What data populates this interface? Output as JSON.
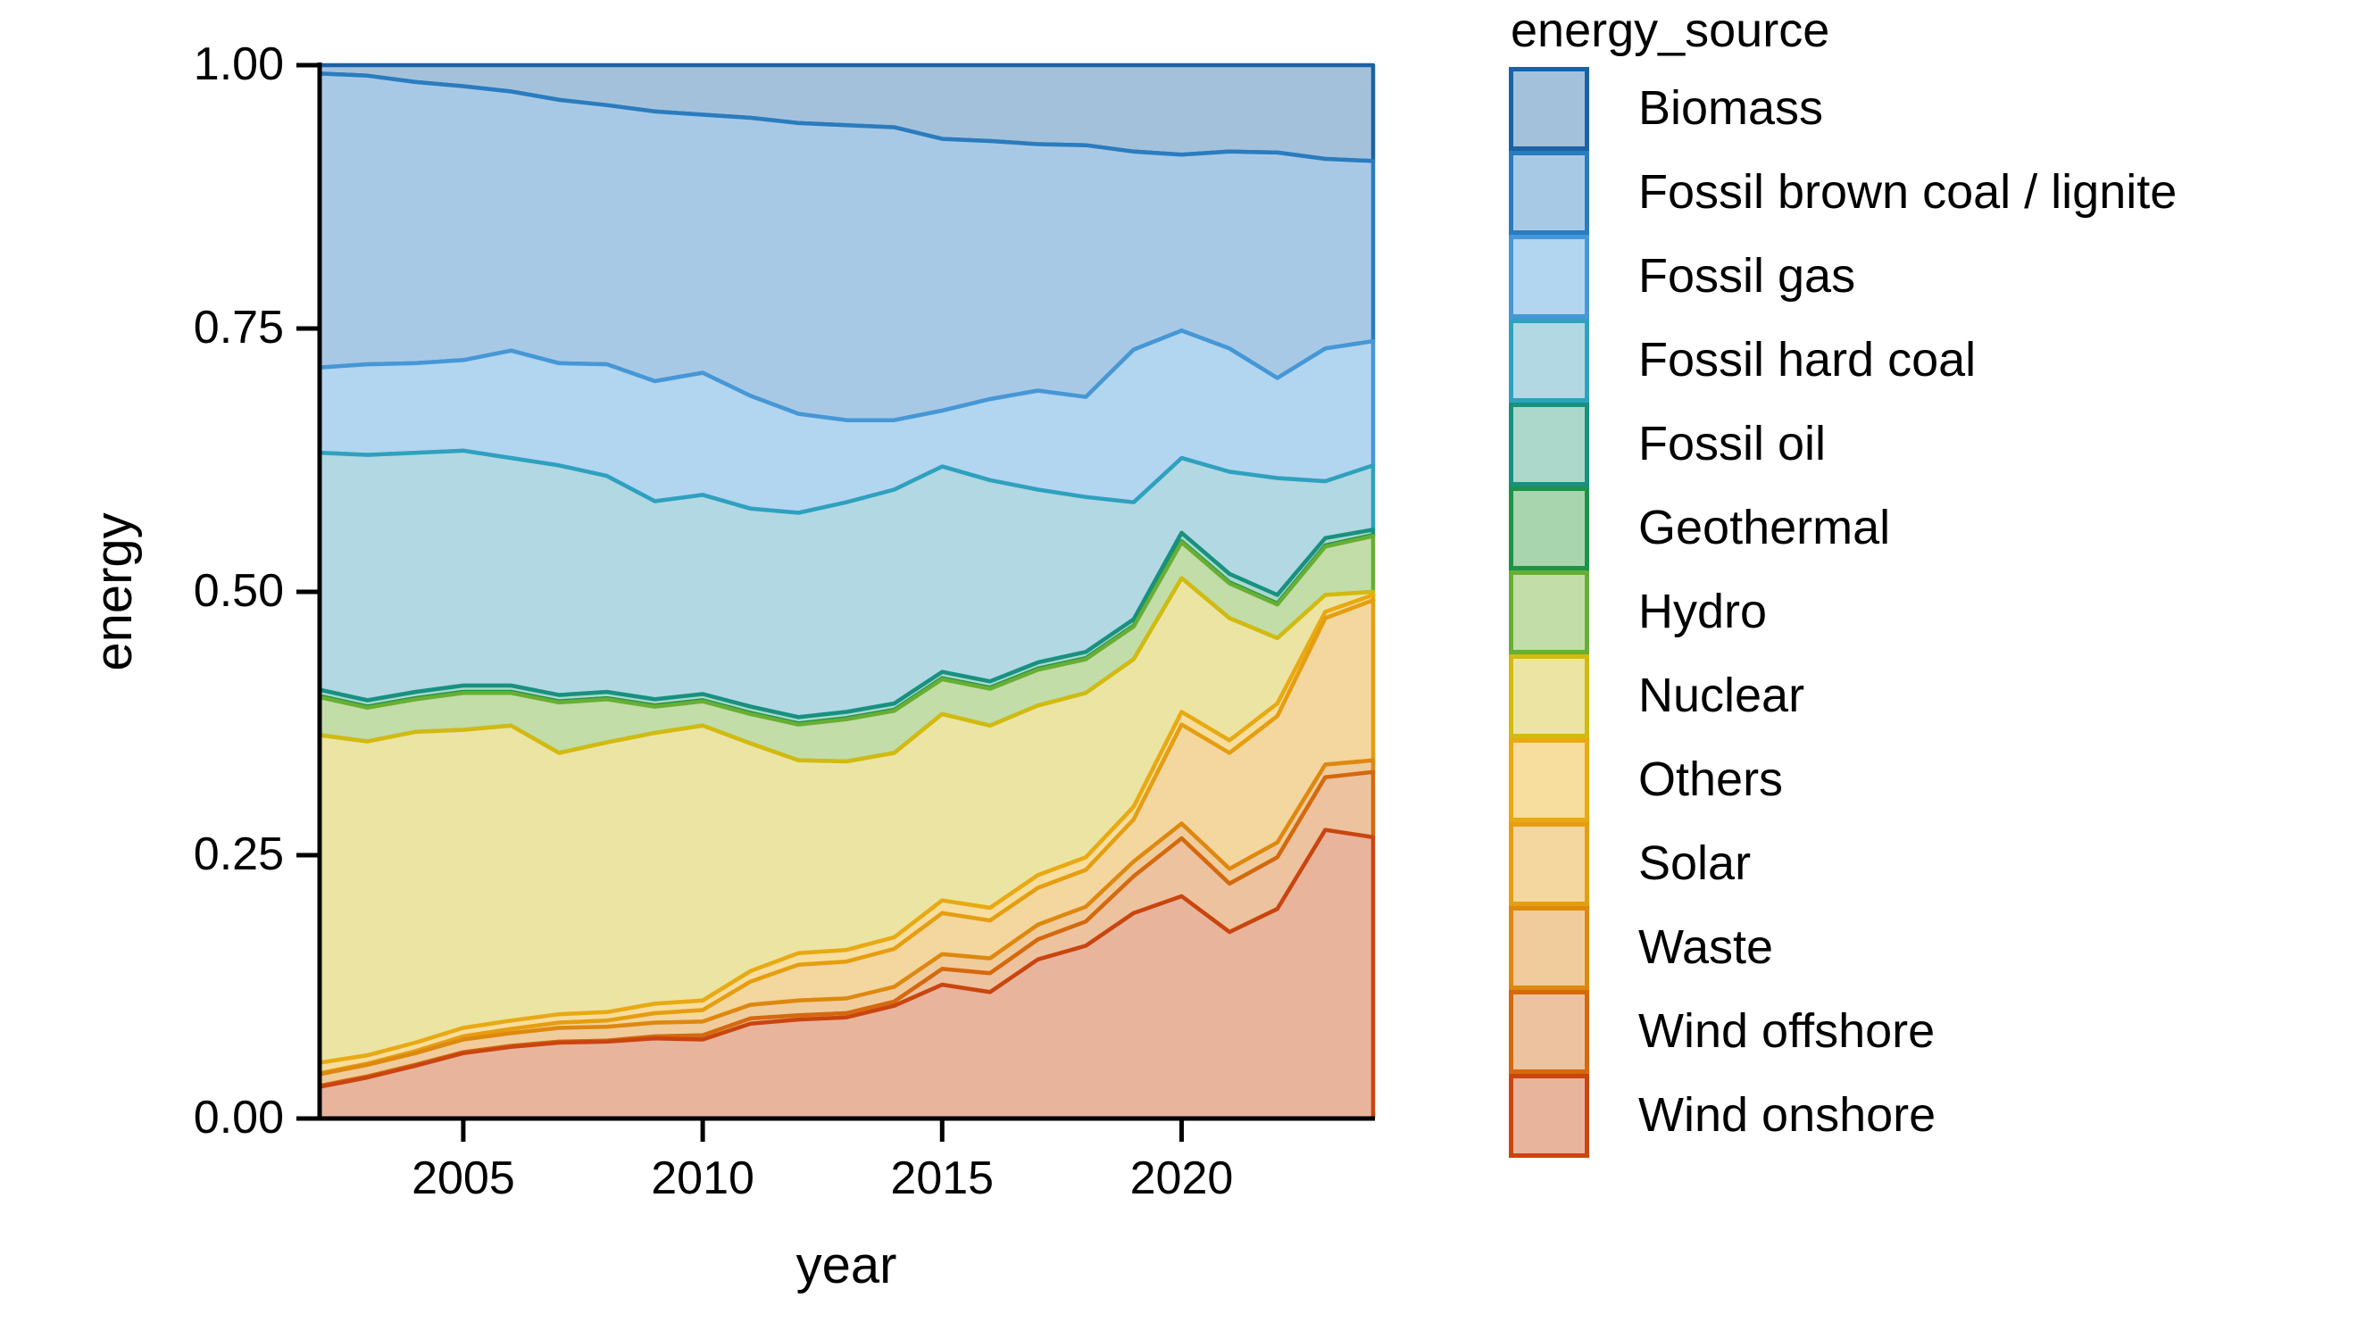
{
  "chart_data": {
    "type": "area",
    "stacked": true,
    "normalized": true,
    "xlabel": "year",
    "ylabel": "energy",
    "legend_title": "energy_source",
    "legend_position": "right",
    "grid": false,
    "xlim": [
      2002,
      2024
    ],
    "ylim": [
      0.0,
      1.0
    ],
    "x": [
      2002,
      2003,
      2004,
      2005,
      2006,
      2007,
      2008,
      2009,
      2010,
      2011,
      2012,
      2013,
      2014,
      2015,
      2016,
      2017,
      2018,
      2019,
      2020,
      2021,
      2022,
      2023,
      2024
    ],
    "x_ticks": [
      2005,
      2010,
      2015,
      2020
    ],
    "y_ticks": [
      "0.00",
      "0.25",
      "0.50",
      "0.75",
      "1.00"
    ],
    "stack_note": "series listed top-of-stack first; stacking bottom-to-top is the reverse of this order",
    "series": [
      {
        "name": "Biomass",
        "fill": "#A4C1DC",
        "stroke": "#1B62A5",
        "values": [
          0.008,
          0.01,
          0.016,
          0.02,
          0.025,
          0.033,
          0.038,
          0.044,
          0.047,
          0.05,
          0.055,
          0.057,
          0.059,
          0.07,
          0.072,
          0.075,
          0.076,
          0.082,
          0.085,
          0.082,
          0.083,
          0.089,
          0.091
        ]
      },
      {
        "name": "Fossil brown coal / lignite",
        "fill": "#A8C9E6",
        "stroke": "#2A7CBE",
        "values": [
          0.279,
          0.274,
          0.267,
          0.26,
          0.246,
          0.25,
          0.246,
          0.256,
          0.245,
          0.264,
          0.276,
          0.28,
          0.278,
          0.258,
          0.245,
          0.234,
          0.239,
          0.188,
          0.167,
          0.187,
          0.214,
          0.18,
          0.171
        ]
      },
      {
        "name": "Fossil gas",
        "fill": "#B2D5F0",
        "stroke": "#4697D6",
        "values": [
          0.081,
          0.086,
          0.085,
          0.086,
          0.102,
          0.097,
          0.106,
          0.114,
          0.116,
          0.107,
          0.094,
          0.078,
          0.066,
          0.053,
          0.077,
          0.094,
          0.095,
          0.145,
          0.121,
          0.117,
          0.095,
          0.126,
          0.118
        ]
      },
      {
        "name": "Fossil hard coal",
        "fill": "#B2D8E3",
        "stroke": "#2EA1BE",
        "values": [
          0.225,
          0.233,
          0.227,
          0.223,
          0.216,
          0.218,
          0.205,
          0.188,
          0.189,
          0.188,
          0.194,
          0.199,
          0.203,
          0.195,
          0.191,
          0.164,
          0.147,
          0.111,
          0.071,
          0.097,
          0.111,
          0.054,
          0.061
        ]
      },
      {
        "name": "Fossil oil",
        "fill": "#ABD8CA",
        "stroke": "#189180",
        "values": [
          0.006,
          0.006,
          0.006,
          0.006,
          0.006,
          0.006,
          0.006,
          0.006,
          0.006,
          0.006,
          0.006,
          0.006,
          0.006,
          0.006,
          0.006,
          0.006,
          0.006,
          0.006,
          0.008,
          0.008,
          0.008,
          0.007,
          0.005
        ]
      },
      {
        "name": "Geothermal",
        "fill": "#A8D4AE",
        "stroke": "#1D9348",
        "values": [
          0.001,
          0.001,
          0.001,
          0.001,
          0.001,
          0.001,
          0.001,
          0.001,
          0.001,
          0.001,
          0.001,
          0.001,
          0.001,
          0.001,
          0.001,
          0.001,
          0.001,
          0.001,
          0.001,
          0.001,
          0.001,
          0.001,
          0.001
        ]
      },
      {
        "name": "Hydro",
        "fill": "#C2DDA8",
        "stroke": "#69AE34",
        "values": [
          0.036,
          0.032,
          0.031,
          0.035,
          0.031,
          0.048,
          0.041,
          0.025,
          0.023,
          0.028,
          0.034,
          0.04,
          0.04,
          0.033,
          0.035,
          0.034,
          0.032,
          0.031,
          0.034,
          0.033,
          0.032,
          0.046,
          0.053
        ]
      },
      {
        "name": "Nuclear",
        "fill": "#ECE4A3",
        "stroke": "#D2BA0F",
        "values": [
          0.311,
          0.298,
          0.295,
          0.283,
          0.28,
          0.248,
          0.256,
          0.257,
          0.261,
          0.216,
          0.183,
          0.179,
          0.175,
          0.177,
          0.173,
          0.161,
          0.156,
          0.14,
          0.127,
          0.116,
          0.062,
          0.016,
          0.003
        ]
      },
      {
        "name": "Others",
        "fill": "#F7DD9E",
        "stroke": "#E9A912",
        "values": [
          0.01,
          0.008,
          0.008,
          0.008,
          0.008,
          0.008,
          0.008,
          0.009,
          0.009,
          0.01,
          0.011,
          0.011,
          0.011,
          0.012,
          0.012,
          0.012,
          0.012,
          0.012,
          0.012,
          0.012,
          0.012,
          0.006,
          0.005
        ]
      },
      {
        "name": "Solar",
        "fill": "#F4D69F",
        "stroke": "#E59E10",
        "values": [
          0.001,
          0.001,
          0.002,
          0.003,
          0.004,
          0.005,
          0.006,
          0.009,
          0.011,
          0.022,
          0.034,
          0.035,
          0.036,
          0.039,
          0.036,
          0.035,
          0.035,
          0.04,
          0.094,
          0.11,
          0.12,
          0.139,
          0.152
        ]
      },
      {
        "name": "Waste",
        "fill": "#F0CC9D",
        "stroke": "#DE8810",
        "values": [
          0.011,
          0.011,
          0.011,
          0.012,
          0.012,
          0.013,
          0.013,
          0.013,
          0.013,
          0.013,
          0.014,
          0.014,
          0.014,
          0.014,
          0.014,
          0.014,
          0.014,
          0.014,
          0.014,
          0.014,
          0.014,
          0.012,
          0.011
        ]
      },
      {
        "name": "Wind offshore",
        "fill": "#EDC29F",
        "stroke": "#D4690E",
        "values": [
          0.001,
          0.001,
          0.001,
          0.001,
          0.001,
          0.001,
          0.001,
          0.002,
          0.004,
          0.005,
          0.004,
          0.004,
          0.004,
          0.015,
          0.018,
          0.019,
          0.023,
          0.035,
          0.055,
          0.046,
          0.049,
          0.05,
          0.062
        ]
      },
      {
        "name": "Wind onshore",
        "fill": "#E9B49C",
        "stroke": "#C9450F",
        "values": [
          0.03,
          0.039,
          0.05,
          0.062,
          0.068,
          0.072,
          0.073,
          0.076,
          0.075,
          0.09,
          0.094,
          0.096,
          0.107,
          0.127,
          0.12,
          0.151,
          0.164,
          0.195,
          0.211,
          0.177,
          0.199,
          0.274,
          0.267
        ]
      }
    ]
  }
}
